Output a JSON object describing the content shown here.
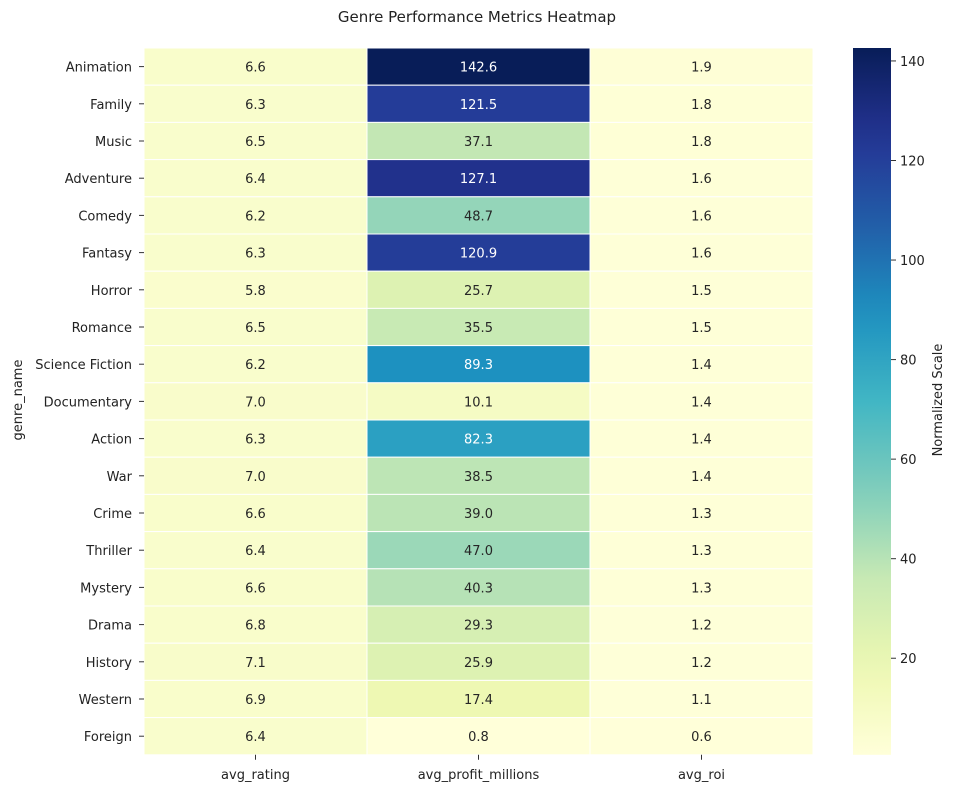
{
  "chart_data": {
    "type": "heatmap",
    "title": "Genre Performance Metrics Heatmap",
    "ylabel": "genre_name",
    "xlabel": "",
    "columns": [
      "avg_rating",
      "avg_profit_millions",
      "avg_roi"
    ],
    "rows": [
      {
        "genre": "Animation",
        "values": [
          6.6,
          142.6,
          1.9
        ]
      },
      {
        "genre": "Family",
        "values": [
          6.3,
          121.5,
          1.8
        ]
      },
      {
        "genre": "Music",
        "values": [
          6.5,
          37.1,
          1.8
        ]
      },
      {
        "genre": "Adventure",
        "values": [
          6.4,
          127.1,
          1.6
        ]
      },
      {
        "genre": "Comedy",
        "values": [
          6.2,
          48.7,
          1.6
        ]
      },
      {
        "genre": "Fantasy",
        "values": [
          6.3,
          120.9,
          1.6
        ]
      },
      {
        "genre": "Horror",
        "values": [
          5.8,
          25.7,
          1.5
        ]
      },
      {
        "genre": "Romance",
        "values": [
          6.5,
          35.5,
          1.5
        ]
      },
      {
        "genre": "Science Fiction",
        "values": [
          6.2,
          89.3,
          1.4
        ]
      },
      {
        "genre": "Documentary",
        "values": [
          7.0,
          10.1,
          1.4
        ]
      },
      {
        "genre": "Action",
        "values": [
          6.3,
          82.3,
          1.4
        ]
      },
      {
        "genre": "War",
        "values": [
          7.0,
          38.5,
          1.4
        ]
      },
      {
        "genre": "Crime",
        "values": [
          6.6,
          39.0,
          1.3
        ]
      },
      {
        "genre": "Thriller",
        "values": [
          6.4,
          47.0,
          1.3
        ]
      },
      {
        "genre": "Mystery",
        "values": [
          6.6,
          40.3,
          1.3
        ]
      },
      {
        "genre": "Drama",
        "values": [
          6.8,
          29.3,
          1.2
        ]
      },
      {
        "genre": "History",
        "values": [
          7.1,
          25.9,
          1.2
        ]
      },
      {
        "genre": "Western",
        "values": [
          6.9,
          17.4,
          1.1
        ]
      },
      {
        "genre": "Foreign",
        "values": [
          6.4,
          0.8,
          0.6
        ]
      }
    ],
    "colorbar": {
      "label": "Normalized Scale",
      "range": [
        0.6,
        142.6
      ],
      "ticks": [
        20,
        40,
        60,
        80,
        100,
        120,
        140
      ],
      "colormap": "YlGnBu"
    },
    "grid": false
  }
}
